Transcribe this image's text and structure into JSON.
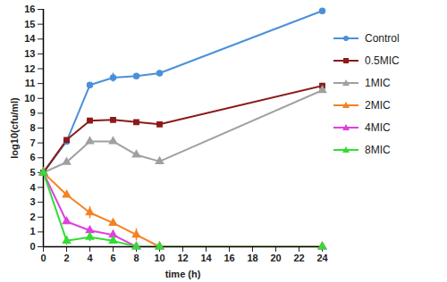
{
  "chart_data": {
    "type": "line",
    "x": [
      0,
      2,
      4,
      6,
      8,
      10,
      24
    ],
    "xlabel": "time (h)",
    "ylabel": "log10(cfu/ml)",
    "xlim": [
      0,
      24
    ],
    "xticks": [
      0,
      2,
      4,
      6,
      8,
      10,
      12,
      14,
      16,
      18,
      20,
      22,
      24
    ],
    "ylim": [
      0,
      16
    ],
    "yticks": [
      0,
      1,
      2,
      3,
      4,
      5,
      6,
      7,
      8,
      9,
      10,
      11,
      12,
      13,
      14,
      15,
      16
    ],
    "legend": "right",
    "series": [
      {
        "name": "Control",
        "color": "#4a90d9",
        "marker": "circle",
        "values": [
          5,
          7.1,
          10.9,
          11.4,
          11.5,
          11.7,
          15.9
        ],
        "errors": [
          null,
          null,
          null,
          0.3,
          null,
          null,
          null
        ]
      },
      {
        "name": "0.5MIC",
        "color": "#8b1a1a",
        "marker": "square",
        "values": [
          5,
          7.2,
          8.5,
          8.55,
          8.4,
          8.25,
          10.85
        ],
        "errors": [
          null,
          null,
          null,
          null,
          null,
          null,
          null
        ]
      },
      {
        "name": "1MIC",
        "color": "#a0a0a0",
        "marker": "triangle",
        "values": [
          5,
          5.7,
          7.1,
          7.1,
          6.2,
          5.75,
          10.55
        ],
        "errors": [
          null,
          null,
          null,
          null,
          null,
          null,
          null
        ]
      },
      {
        "name": "2MIC",
        "color": "#f58220",
        "marker": "triangle",
        "values": [
          5,
          3.5,
          2.3,
          1.6,
          0.8,
          0,
          0
        ],
        "errors": [
          null,
          null,
          0.4,
          null,
          0.4,
          null,
          null
        ]
      },
      {
        "name": "4MIC",
        "color": "#e040e0",
        "marker": "triangle",
        "values": [
          5,
          1.7,
          1.1,
          0.8,
          0,
          0,
          0
        ],
        "errors": [
          null,
          null,
          null,
          0.3,
          null,
          null,
          null
        ]
      },
      {
        "name": "8MIC",
        "color": "#33dd33",
        "marker": "triangle",
        "values": [
          5,
          0.4,
          0.65,
          0.4,
          0,
          0,
          0
        ],
        "errors": [
          null,
          0.3,
          0.3,
          null,
          null,
          null,
          null
        ]
      }
    ]
  }
}
